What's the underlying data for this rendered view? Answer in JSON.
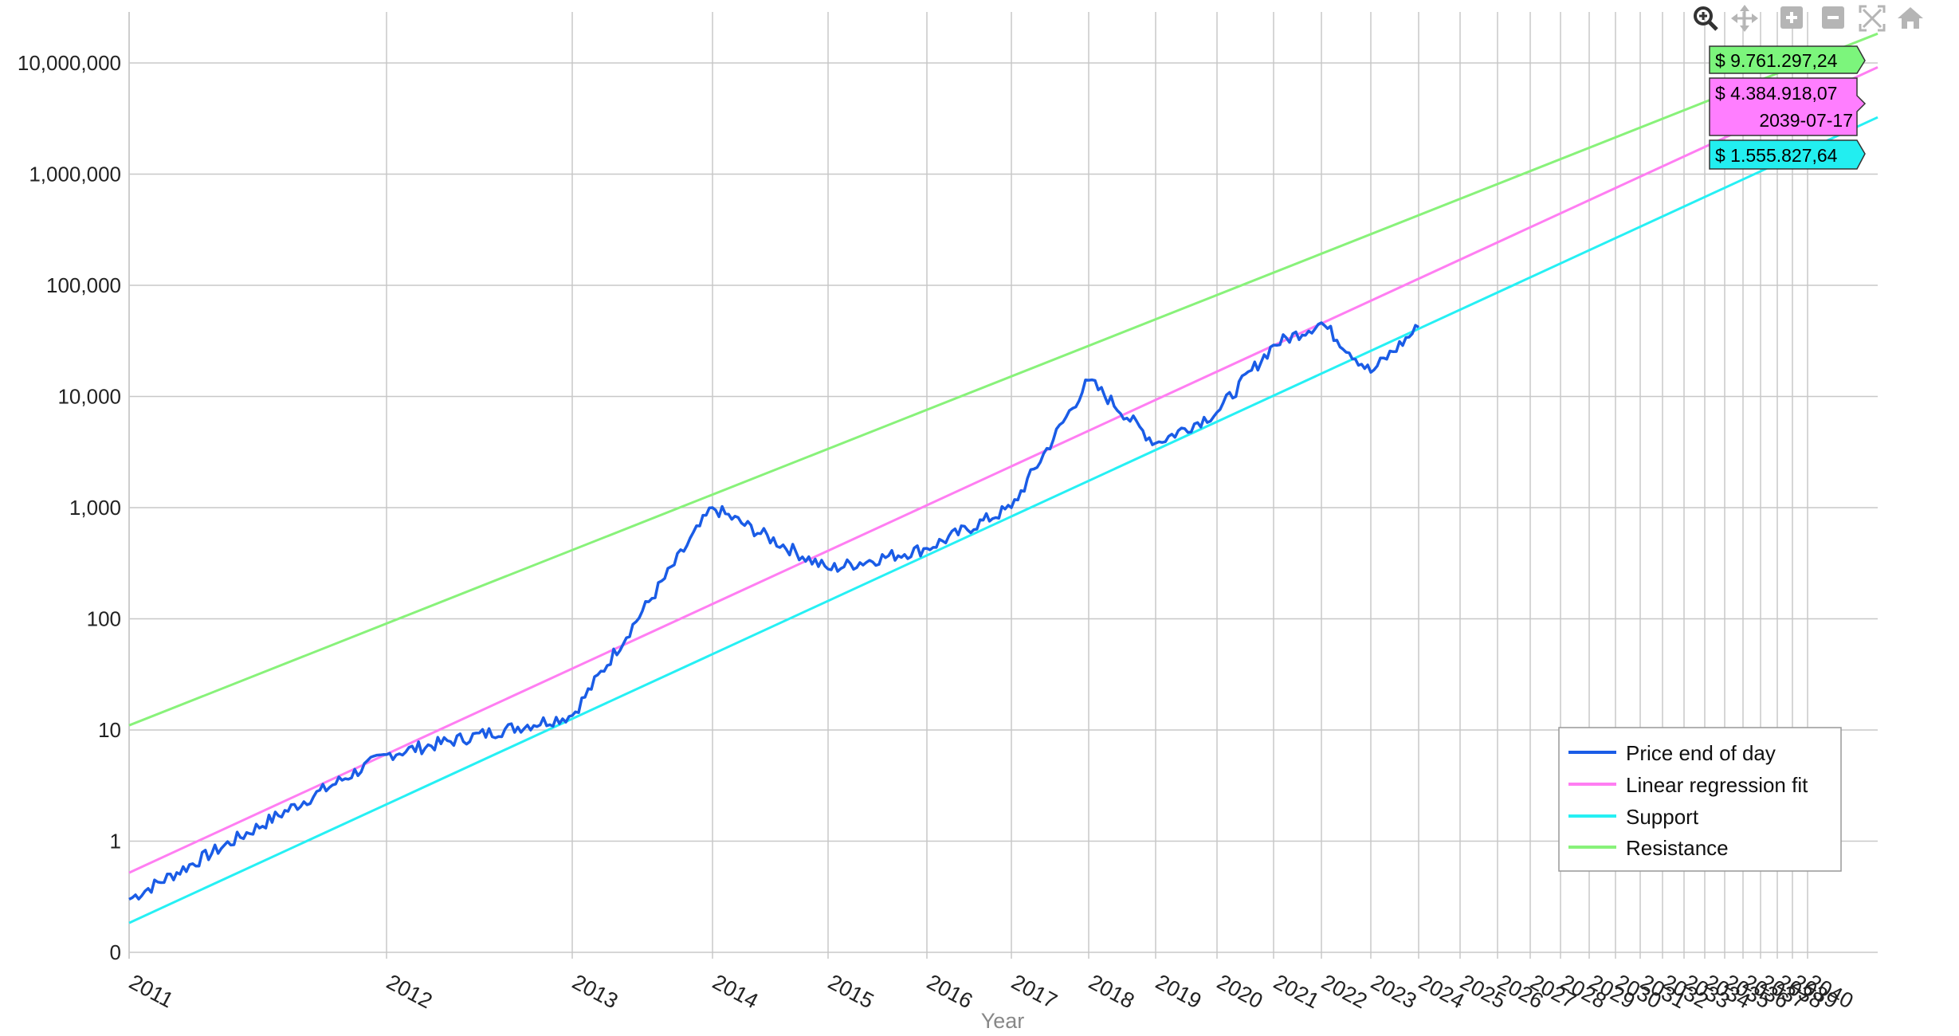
{
  "chart_data": {
    "type": "line",
    "title": "",
    "xlabel": "Year",
    "ylabel": "",
    "yscale": "log",
    "grid": true,
    "legend_position": "bottom-right",
    "y_ticks": [
      {
        "value": 0.1,
        "label": "0"
      },
      {
        "value": 1,
        "label": "1"
      },
      {
        "value": 10,
        "label": "10"
      },
      {
        "value": 100,
        "label": "100"
      },
      {
        "value": 1000,
        "label": "1,000"
      },
      {
        "value": 10000,
        "label": "10,000"
      },
      {
        "value": 100000,
        "label": "100,000"
      },
      {
        "value": 1000000,
        "label": "1,000,000"
      },
      {
        "value": 10000000,
        "label": "10,000,000"
      }
    ],
    "x_ticks": [
      "2011",
      "2012",
      "2013",
      "2014",
      "2015",
      "2016",
      "2017",
      "2018",
      "2019",
      "2020",
      "2021",
      "2022",
      "2023",
      "2024",
      "2025",
      "2026",
      "2027",
      "2028",
      "2029",
      "2030",
      "2031",
      "2032",
      "2033",
      "2034",
      "2035",
      "2036",
      "2037",
      "2038",
      "2039",
      "2040"
    ],
    "series": [
      {
        "name": "Price end of day",
        "color": "#1a5ce6",
        "points": [
          [
            "2011",
            0.3
          ],
          [
            "2012",
            6.0
          ],
          [
            "2013",
            13.5
          ],
          [
            "2014",
            1000
          ],
          [
            "2015",
            280
          ],
          [
            "2016",
            430
          ],
          [
            "2017",
            1000
          ],
          [
            "2018",
            14000
          ],
          [
            "2019",
            3800
          ],
          [
            "2020",
            7200
          ],
          [
            "2021",
            29000
          ],
          [
            "2022",
            46000
          ],
          [
            "2023",
            16500
          ],
          [
            "2024",
            42000
          ]
        ]
      },
      {
        "name": "Linear regression fit",
        "color": "#ff7ef2",
        "points": [
          [
            "2011",
            0.52
          ],
          [
            "2039-07-17",
            4384918.07
          ]
        ]
      },
      {
        "name": "Support",
        "color": "#26f0f4",
        "points": [
          [
            "2011",
            0.184
          ],
          [
            "2039-07-17",
            1555827.64
          ]
        ]
      },
      {
        "name": "Resistance",
        "color": "#88f27a",
        "points": [
          [
            "2011",
            11.0
          ],
          [
            "2039-07-17",
            9761297.24
          ]
        ]
      }
    ],
    "tooltip": {
      "date": "2039-07-17",
      "resistance_label": "$ 9.761.297,24",
      "fit_label": "$ 4.384.918,07",
      "support_label": "$ 1.555.827,64",
      "resistance_color": "#7cf57c",
      "fit_color": "#ff7eff",
      "support_color": "#22eef0"
    },
    "legend": [
      {
        "name": "Price end of day",
        "color": "#1a5ce6"
      },
      {
        "name": "Linear regression fit",
        "color": "#ff7ef2"
      },
      {
        "name": "Support",
        "color": "#26f0f4"
      },
      {
        "name": "Resistance",
        "color": "#88f27a"
      }
    ]
  },
  "toolbar": {
    "icons": [
      "zoom-icon",
      "pan-icon",
      "zoom-in-icon",
      "zoom-out-icon",
      "autoscale-icon",
      "reset-home-icon"
    ]
  }
}
